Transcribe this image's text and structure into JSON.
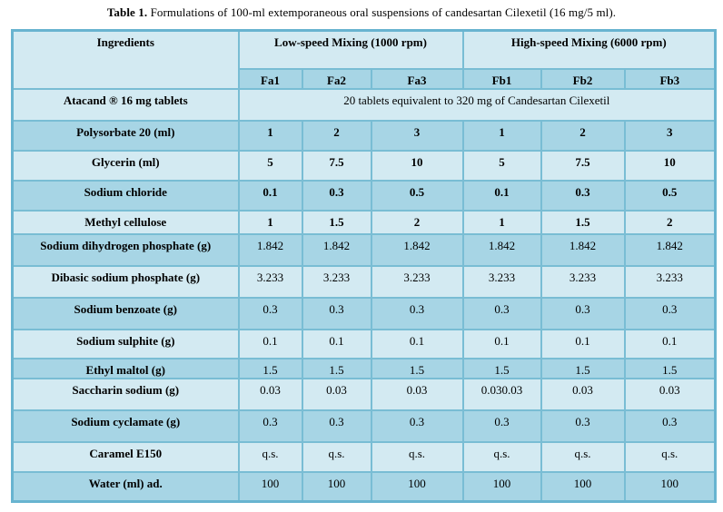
{
  "title": {
    "label": "Table 1.",
    "text": " Formulations of 100-ml extemporaneous oral suspensions of candesartan Cilexetil (16 mg/5 ml)."
  },
  "table": {
    "ingredients_header": "Ingredients",
    "group_headers": [
      "Low-speed Mixing (1000 rpm)",
      "High-speed Mixing (6000 rpm)"
    ],
    "column_headers": [
      "Fa1",
      "Fa2",
      "Fa3",
      "Fb1",
      "Fb2",
      "Fb3"
    ],
    "merged_row": {
      "label": "Atacand ® 16 mg tablets",
      "value": "20 tablets equivalent to 320 mg of Candesartan Cilexetil"
    },
    "rows": [
      {
        "label": "Polysorbate 20 (ml)",
        "values": [
          "1",
          "2",
          "3",
          "1",
          "2",
          "3"
        ]
      },
      {
        "label": "Glycerin (ml)",
        "values": [
          "5",
          "7.5",
          "10",
          "5",
          "7.5",
          "10"
        ]
      },
      {
        "label": "Sodium chloride",
        "values": [
          "0.1",
          "0.3",
          "0.5",
          "0.1",
          "0.3",
          "0.5"
        ]
      },
      {
        "label": "Methyl cellulose",
        "values": [
          "1",
          "1.5",
          "2",
          "1",
          "1.5",
          "2"
        ]
      },
      {
        "label": "Sodium dihydrogen phosphate (g)",
        "values": [
          "1.842",
          "1.842",
          "1.842",
          "1.842",
          "1.842",
          "1.842"
        ]
      },
      {
        "label": "Dibasic sodium phosphate (g)",
        "values": [
          "3.233",
          "3.233",
          "3.233",
          "3.233",
          "3.233",
          "3.233"
        ]
      },
      {
        "label": "Sodium benzoate (g)",
        "values": [
          "0.3",
          "0.3",
          "0.3",
          "0.3",
          "0.3",
          "0.3"
        ]
      },
      {
        "label": "Sodium sulphite (g)",
        "values": [
          "0.1",
          "0.1",
          "0.1",
          "0.1",
          "0.1",
          "0.1"
        ]
      },
      {
        "label": "Ethyl maltol (g)",
        "values": [
          "1.5",
          "1.5",
          "1.5",
          "1.5",
          "1.5",
          "1.5"
        ]
      },
      {
        "label": "Saccharin sodium (g)",
        "values": [
          "0.03",
          "0.03",
          "0.03",
          "0.030.03",
          "0.03",
          "0.03"
        ]
      },
      {
        "label": "Sodium cyclamate (g)",
        "values": [
          "0.3",
          "0.3",
          "0.3",
          "0.3",
          "0.3",
          "0.3"
        ]
      },
      {
        "label": "Caramel E150",
        "values": [
          "q.s.",
          "q.s.",
          "q.s.",
          "q.s.",
          "q.s.",
          "q.s."
        ]
      },
      {
        "label": "Water (ml) ad.",
        "values": [
          "100",
          "100",
          "100",
          "100",
          "100",
          "100"
        ]
      }
    ]
  },
  "colors": {
    "row_light": "#d3eaf2",
    "row_dark": "#a7d5e5",
    "grid_border": "#79bdd4",
    "outer_border": "#68b4d0",
    "text": "#000000",
    "page_background": "#ffffff"
  }
}
